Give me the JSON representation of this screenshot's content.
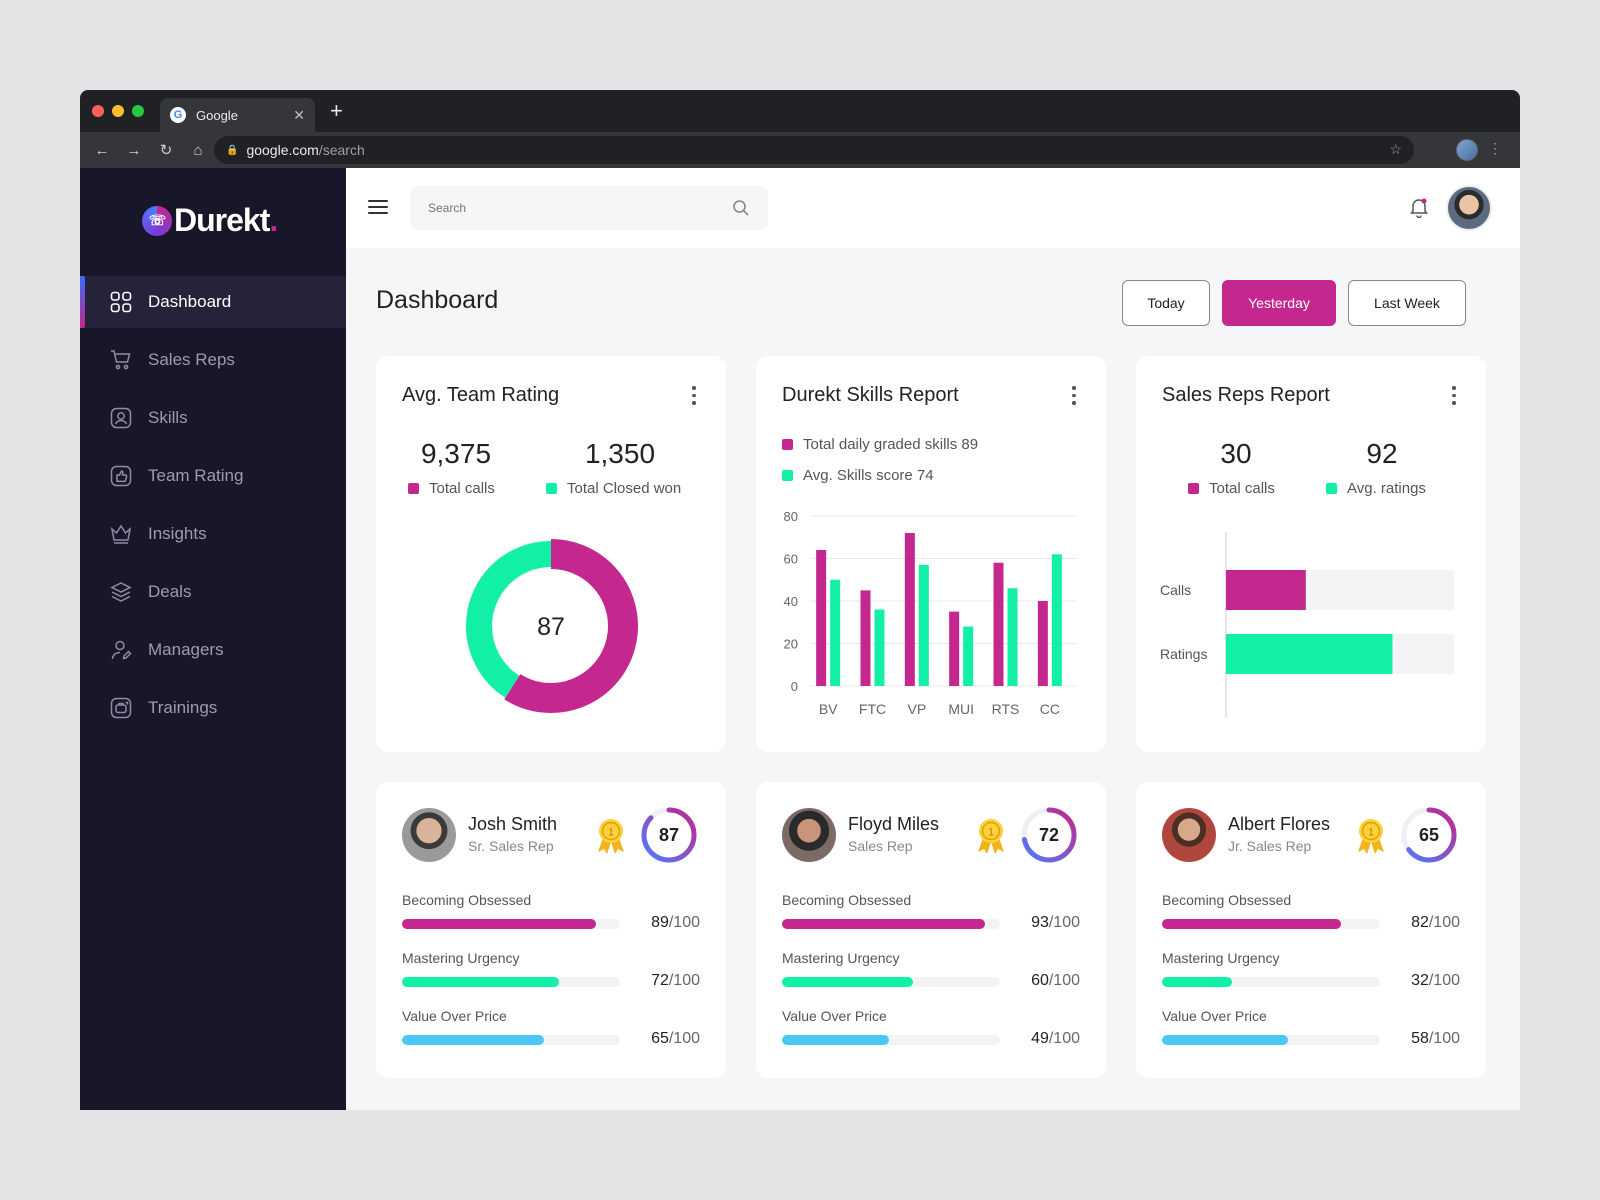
{
  "browser": {
    "tab_title": "Google",
    "url_host": "google.com",
    "url_path": "/search"
  },
  "brand": {
    "name": "Durekt",
    "dot": ".",
    "accent": "#c4278d",
    "secondary": "#12f0a8",
    "tertiary": "#4ac8f5"
  },
  "sidebar": {
    "items": [
      {
        "label": "Dashboard",
        "icon": "grid-icon",
        "active": true
      },
      {
        "label": "Sales Reps",
        "icon": "cart-icon"
      },
      {
        "label": "Skills",
        "icon": "user-badge-icon"
      },
      {
        "label": "Team Rating",
        "icon": "thumbs-up-icon"
      },
      {
        "label": "Insights",
        "icon": "crown-icon"
      },
      {
        "label": "Deals",
        "icon": "layers-icon"
      },
      {
        "label": "Managers",
        "icon": "user-edit-icon"
      },
      {
        "label": "Trainings",
        "icon": "training-icon"
      }
    ]
  },
  "topbar": {
    "search_placeholder": "Search"
  },
  "page": {
    "title": "Dashboard",
    "ranges": [
      "Today",
      "Yesterday",
      "Last Week"
    ],
    "active_range": "Yesterday"
  },
  "team_rating": {
    "title": "Avg. Team Rating",
    "stats": [
      {
        "value": "9,375",
        "label": "Total calls"
      },
      {
        "value": "1,350",
        "label": "Total Closed won"
      }
    ],
    "donut_center": "87"
  },
  "skills_report": {
    "title": "Durekt Skills Report",
    "legend": [
      "Total daily graded skills 89",
      "Avg. Skills score 74"
    ]
  },
  "sales_reps_report": {
    "title": "Sales Reps Report",
    "stats": [
      {
        "value": "30",
        "label": "Total calls"
      },
      {
        "value": "92",
        "label": "Avg. ratings"
      }
    ]
  },
  "chart_data": [
    {
      "type": "pie",
      "variant": "donut",
      "values": [
        9375,
        1350
      ],
      "center_label": "87",
      "note": "segment proportions estimated from visual"
    },
    {
      "type": "bar",
      "categories": [
        "BV",
        "FTC",
        "VP",
        "MUI",
        "RTS",
        "CC"
      ],
      "series": [
        {
          "values": [
            64,
            45,
            72,
            35,
            58,
            40
          ]
        },
        {
          "values": [
            50,
            36,
            57,
            28,
            46,
            62
          ]
        }
      ],
      "ylim": [
        0,
        80
      ],
      "yticks": [
        0,
        20,
        40,
        60,
        80
      ],
      "grid": true
    },
    {
      "type": "bar",
      "orientation": "horizontal",
      "categories": [
        "Calls",
        "Ratings"
      ],
      "values": [
        0.35,
        0.73
      ],
      "xlim": [
        0,
        1
      ]
    }
  ],
  "reps": [
    {
      "name": "Josh Smith",
      "role": "Sr. Sales Rep",
      "score": "87",
      "score_value": 87,
      "metrics": [
        {
          "label": "Becoming Obsessed",
          "value": "89",
          "max": "/100",
          "num": 89
        },
        {
          "label": "Mastering Urgency",
          "value": "72",
          "max": "/100",
          "num": 72
        },
        {
          "label": "Value Over Price",
          "value": "65",
          "max": "/100",
          "num": 65
        }
      ]
    },
    {
      "name": "Floyd Miles",
      "role": "Sales Rep",
      "score": "72",
      "score_value": 72,
      "metrics": [
        {
          "label": "Becoming Obsessed",
          "value": "93",
          "max": "/100",
          "num": 93
        },
        {
          "label": "Mastering Urgency",
          "value": "60",
          "max": "/100",
          "num": 60
        },
        {
          "label": "Value Over Price",
          "value": "49",
          "max": "/100",
          "num": 49
        }
      ]
    },
    {
      "name": "Albert Flores",
      "role": "Jr. Sales Rep",
      "score": "65",
      "score_value": 65,
      "metrics": [
        {
          "label": "Becoming Obsessed",
          "value": "82",
          "max": "/100",
          "num": 82
        },
        {
          "label": "Mastering Urgency",
          "value": "32",
          "max": "/100",
          "num": 32
        },
        {
          "label": "Value Over Price",
          "value": "58",
          "max": "/100",
          "num": 58
        }
      ]
    }
  ]
}
